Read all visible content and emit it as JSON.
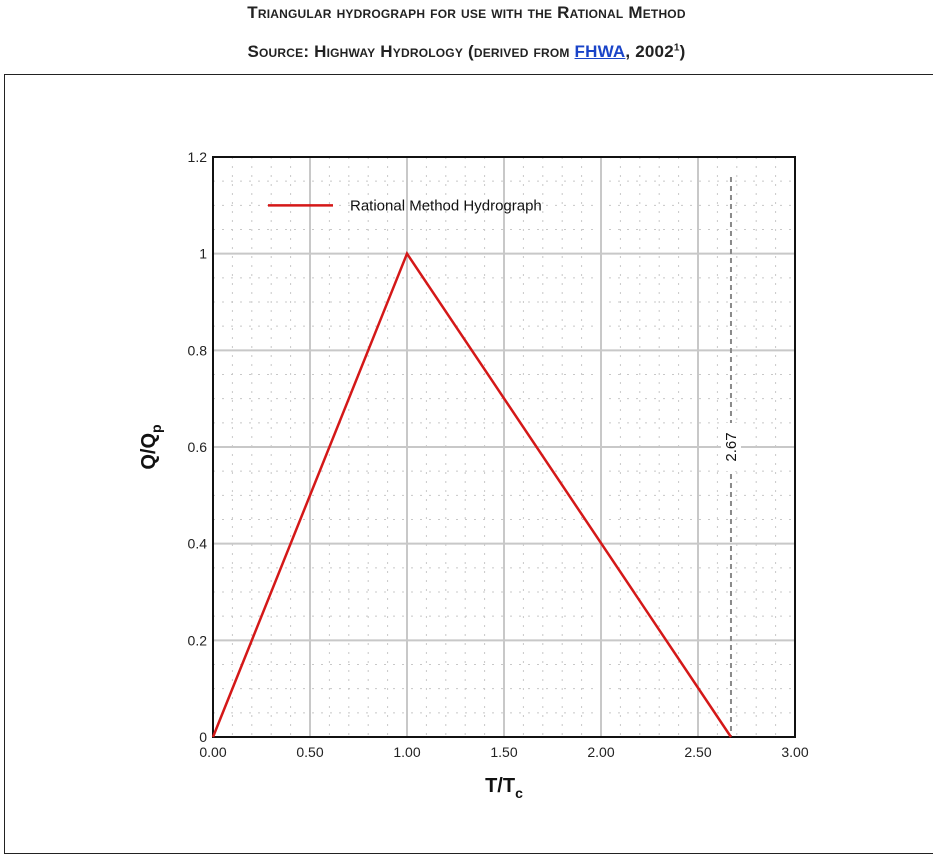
{
  "caption": {
    "line1": "Triangular hydrograph for use with the Rational Method",
    "line2_prefix": "Source: Highway Hydrology (derived from ",
    "line2_link": "FHWA",
    "line2_suffix": ", 2002",
    "line2_sup": "1",
    "line2_close": ")"
  },
  "colors": {
    "series": "#d41818",
    "grid": "#c8c8c8",
    "annotation": "#8a8a8a"
  },
  "chart_data": {
    "type": "line",
    "title": "",
    "xlabel": "T/T",
    "xlabel_sub": "c",
    "ylabel": "Q/Q",
    "ylabel_sub": "p",
    "xlim": [
      0,
      3
    ],
    "ylim": [
      0,
      1.2
    ],
    "x_ticks": [
      "0.00",
      "0.50",
      "1.00",
      "1.50",
      "2.00",
      "2.50",
      "3.00"
    ],
    "y_ticks": [
      "0",
      "0.2",
      "0.4",
      "0.6",
      "0.8",
      "1",
      "1.2"
    ],
    "grid": true,
    "legend_position": "top-left",
    "series": [
      {
        "name": "Rational Method Hydrograph",
        "x": [
          0,
          1,
          2.67
        ],
        "y": [
          0,
          1,
          0
        ]
      }
    ],
    "annotations": [
      {
        "x": 2.67,
        "label": "2.67",
        "style": "dashed vertical line"
      }
    ]
  }
}
